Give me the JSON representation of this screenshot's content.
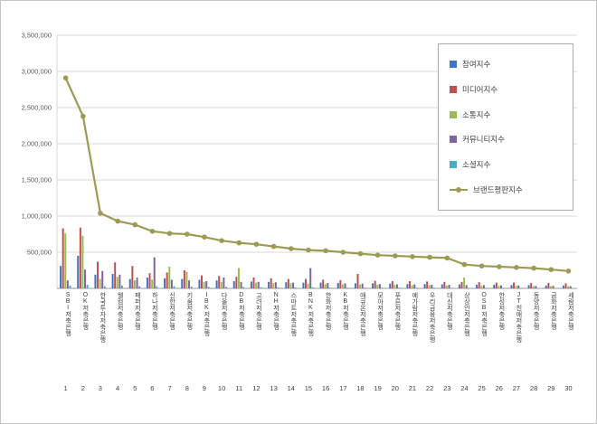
{
  "figure": {
    "background": "#ffffff",
    "border_color": "#c3c3c3"
  },
  "chart_data": {
    "type": "bar",
    "subtype": "grouped-bars-with-line",
    "title": "",
    "xlabel": "",
    "ylabel": "",
    "ylim": [
      0,
      3500000
    ],
    "ytick": 500000,
    "grid": true,
    "legend_position": "top-right",
    "ranks": [
      1,
      2,
      3,
      4,
      5,
      6,
      7,
      8,
      9,
      10,
      11,
      12,
      13,
      14,
      15,
      16,
      17,
      18,
      19,
      20,
      21,
      22,
      23,
      24,
      25,
      26,
      27,
      28,
      29,
      30
    ],
    "categories": [
      "SBI저축은행",
      "OK저축은행",
      "한국투자저축은행",
      "웰컴저축은행",
      "페퍼저축은행",
      "하나저축은행",
      "신한저축은행",
      "키움저축은행",
      "IBK저축은행",
      "다올저축은행",
      "DB저축은행",
      "고려저축은행",
      "NH저축은행",
      "스마트저축은행",
      "BNK저축은행",
      "한화저축은행",
      "KB저축은행",
      "애큐온저축은행",
      "모아저축은행",
      "푸른저축은행",
      "예가람저축은행",
      "우리금융저축은행",
      "대신저축은행",
      "상상인저축은행",
      "OSB저축은행",
      "한성저축은행",
      "JT친애저축은행",
      "동양저축은행",
      "금화저축은행",
      "세람저축은행"
    ],
    "series": [
      {
        "name": "참여지수",
        "type": "bar",
        "color": "#4472C4",
        "values": [
          310000,
          450000,
          190000,
          200000,
          130000,
          150000,
          140000,
          130000,
          120000,
          110000,
          100000,
          95000,
          90000,
          85000,
          80000,
          80000,
          75000,
          70000,
          70000,
          65000,
          60000,
          60000,
          55000,
          55000,
          50000,
          50000,
          45000,
          45000,
          40000,
          40000
        ]
      },
      {
        "name": "미디어지수",
        "type": "bar",
        "color": "#C0504D",
        "values": [
          830000,
          840000,
          370000,
          360000,
          310000,
          210000,
          220000,
          250000,
          180000,
          170000,
          160000,
          150000,
          140000,
          130000,
          130000,
          120000,
          115000,
          200000,
          105000,
          100000,
          100000,
          95000,
          90000,
          90000,
          85000,
          80000,
          80000,
          75000,
          75000,
          70000
        ]
      },
      {
        "name": "소통지수",
        "type": "bar",
        "color": "#9BBB59",
        "values": [
          760000,
          730000,
          130000,
          160000,
          110000,
          120000,
          300000,
          230000,
          90000,
          90000,
          280000,
          80000,
          75000,
          70000,
          65000,
          60000,
          55000,
          55000,
          50000,
          50000,
          45000,
          45000,
          40000,
          150000,
          40000,
          35000,
          35000,
          30000,
          30000,
          30000
        ]
      },
      {
        "name": "커뮤니티지수",
        "type": "bar",
        "color": "#8064A2",
        "values": [
          110000,
          260000,
          240000,
          190000,
          150000,
          430000,
          120000,
          110000,
          100000,
          150000,
          90000,
          90000,
          85000,
          80000,
          280000,
          75000,
          70000,
          65000,
          60000,
          55000,
          55000,
          50000,
          50000,
          45000,
          45000,
          40000,
          40000,
          35000,
          35000,
          30000
        ]
      },
      {
        "name": "소셜지수",
        "type": "bar",
        "color": "#4BACC6",
        "values": [
          40000,
          50000,
          30000,
          40000,
          30000,
          30000,
          30000,
          25000,
          20000,
          20000,
          20000,
          15000,
          15000,
          15000,
          15000,
          10000,
          10000,
          10000,
          10000,
          10000,
          10000,
          10000,
          8000,
          8000,
          8000,
          8000,
          8000,
          6000,
          6000,
          6000
        ]
      },
      {
        "name": "브랜드평판지수",
        "type": "line",
        "color": "#9D9B53",
        "values": [
          2910000,
          2380000,
          1040000,
          930000,
          880000,
          790000,
          760000,
          750000,
          710000,
          660000,
          630000,
          610000,
          580000,
          550000,
          530000,
          520000,
          500000,
          480000,
          460000,
          450000,
          440000,
          430000,
          420000,
          330000,
          310000,
          300000,
          290000,
          280000,
          260000,
          240000
        ]
      }
    ]
  }
}
